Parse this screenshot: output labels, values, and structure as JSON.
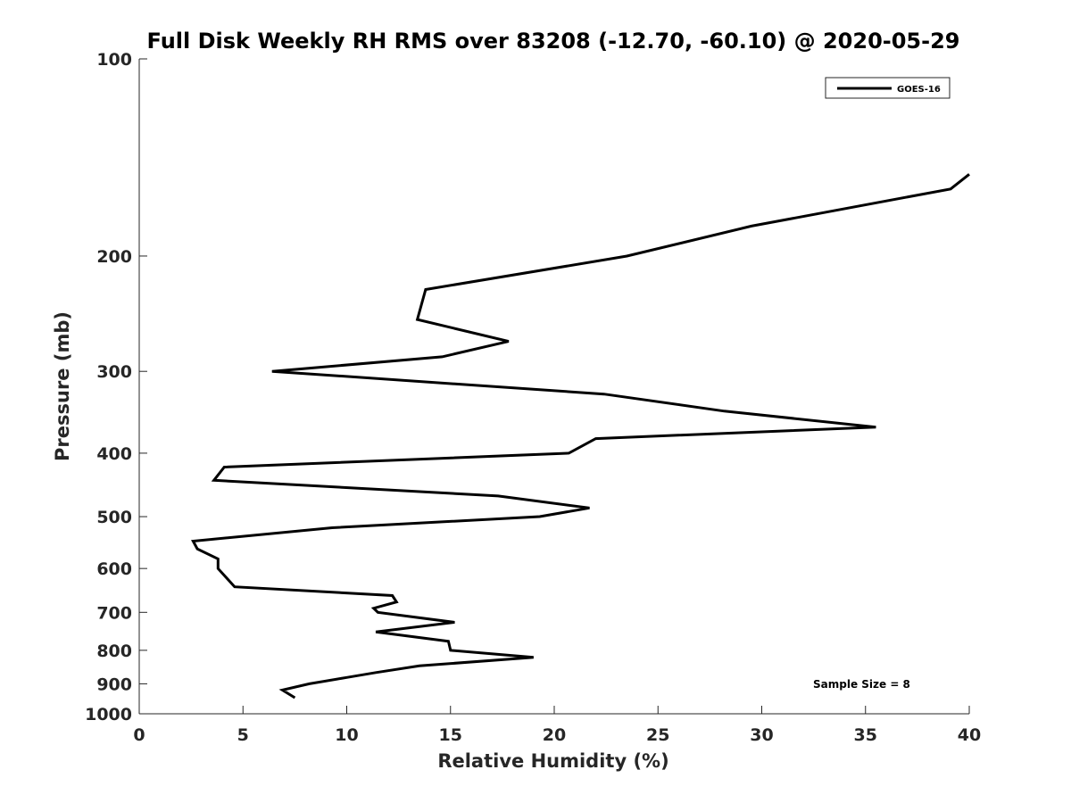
{
  "chart_data": {
    "type": "line",
    "title": "Full Disk Weekly RH RMS over 83208 (-12.70, -60.10) @ 2020-05-29",
    "xlabel": "Relative Humidity (%)",
    "ylabel": "Pressure (mb)",
    "xlim": [
      0,
      40
    ],
    "ylim": [
      100,
      1000
    ],
    "y_scale": "log",
    "y_reversed": true,
    "x_ticks": [
      0,
      5,
      10,
      15,
      20,
      25,
      30,
      35,
      40
    ],
    "y_ticks": [
      100,
      200,
      300,
      400,
      500,
      600,
      700,
      800,
      900,
      1000
    ],
    "grid": false,
    "legend_position": "top-right",
    "series": [
      {
        "name": "GOES-16",
        "color": "#000000",
        "points": [
          {
            "x": 40.0,
            "y": 150
          },
          {
            "x": 39.1,
            "y": 158
          },
          {
            "x": 29.5,
            "y": 180
          },
          {
            "x": 23.5,
            "y": 200
          },
          {
            "x": 13.8,
            "y": 225
          },
          {
            "x": 13.4,
            "y": 250
          },
          {
            "x": 17.8,
            "y": 270
          },
          {
            "x": 14.6,
            "y": 285
          },
          {
            "x": 6.4,
            "y": 300
          },
          {
            "x": 22.4,
            "y": 325
          },
          {
            "x": 28.2,
            "y": 345
          },
          {
            "x": 35.5,
            "y": 365
          },
          {
            "x": 22.0,
            "y": 380
          },
          {
            "x": 20.7,
            "y": 400
          },
          {
            "x": 4.1,
            "y": 420
          },
          {
            "x": 3.6,
            "y": 440
          },
          {
            "x": 17.3,
            "y": 465
          },
          {
            "x": 21.7,
            "y": 485
          },
          {
            "x": 19.3,
            "y": 500
          },
          {
            "x": 9.3,
            "y": 520
          },
          {
            "x": 2.6,
            "y": 545
          },
          {
            "x": 2.8,
            "y": 560
          },
          {
            "x": 3.8,
            "y": 580
          },
          {
            "x": 3.8,
            "y": 600
          },
          {
            "x": 4.6,
            "y": 640
          },
          {
            "x": 12.2,
            "y": 660
          },
          {
            "x": 12.4,
            "y": 675
          },
          {
            "x": 11.3,
            "y": 690
          },
          {
            "x": 11.5,
            "y": 700
          },
          {
            "x": 15.2,
            "y": 725
          },
          {
            "x": 11.4,
            "y": 750
          },
          {
            "x": 14.9,
            "y": 775
          },
          {
            "x": 15.0,
            "y": 800
          },
          {
            "x": 19.0,
            "y": 820
          },
          {
            "x": 13.5,
            "y": 845
          },
          {
            "x": 11.4,
            "y": 865
          },
          {
            "x": 10.0,
            "y": 880
          },
          {
            "x": 8.2,
            "y": 900
          },
          {
            "x": 6.9,
            "y": 920
          },
          {
            "x": 7.5,
            "y": 945
          }
        ]
      }
    ],
    "annotations": [
      {
        "text": "Sample Size = 8",
        "position": "bottom-right"
      }
    ]
  }
}
